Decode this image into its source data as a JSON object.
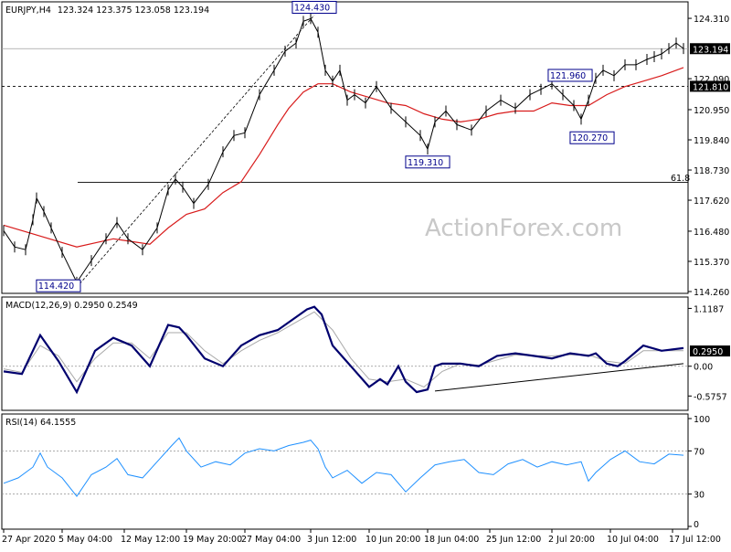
{
  "chart_data": [
    {
      "type": "line",
      "panel": "price",
      "title": "EURJPY,H4",
      "ohlc_label": "123.324 123.375 123.058 123.194",
      "y_ticks": [
        "124.310",
        "123.194",
        "122.090",
        "121.810",
        "120.950",
        "119.840",
        "118.730",
        "117.620",
        "116.480",
        "115.370",
        "114.260"
      ],
      "y_tick_values": [
        124.31,
        123.194,
        122.09,
        121.81,
        120.95,
        119.84,
        118.73,
        117.62,
        116.48,
        115.37,
        114.26
      ],
      "ylim": [
        114.26,
        124.85
      ],
      "current_price_label": "123.194",
      "hline_label": "121.810",
      "fib_label": "61.8",
      "fib_level": 118.28,
      "hline_level": 121.81,
      "current_level": 123.194,
      "annotations": [
        {
          "label": "124.430",
          "x": 85,
          "y": 124.43
        },
        {
          "label": "114.420",
          "x": 20,
          "y": 114.42
        },
        {
          "label": "119.310",
          "x": 116,
          "y": 119.31
        },
        {
          "label": "121.960",
          "x": 155,
          "y": 121.96
        },
        {
          "label": "120.270",
          "x": 161,
          "y": 120.27
        }
      ],
      "trendline": {
        "x": [
          20,
          85
        ],
        "y": [
          114.42,
          124.43
        ]
      },
      "series": [
        {
          "name": "price",
          "x": [
            0,
            3,
            6,
            8,
            9,
            11,
            13,
            16,
            20,
            24,
            28,
            31,
            34,
            38,
            42,
            45,
            47,
            49,
            52,
            56,
            60,
            63,
            66,
            70,
            74,
            77,
            80,
            82,
            84,
            86,
            88,
            90,
            92,
            94,
            96,
            99,
            102,
            106,
            110,
            114,
            116,
            118,
            121,
            124,
            128,
            132,
            136,
            140,
            144,
            147,
            150,
            153,
            156,
            158,
            160,
            162,
            164,
            167,
            170,
            173,
            176,
            178,
            180,
            182,
            184,
            186
          ],
          "y": [
            116.5,
            115.9,
            115.8,
            116.9,
            117.7,
            117.2,
            116.6,
            115.7,
            114.6,
            115.4,
            116.2,
            116.8,
            116.2,
            115.8,
            116.6,
            118.0,
            118.4,
            118.1,
            117.5,
            118.2,
            119.4,
            120.0,
            120.1,
            121.5,
            122.4,
            123.1,
            123.4,
            124.2,
            124.3,
            123.8,
            122.4,
            122.0,
            122.4,
            121.3,
            121.5,
            121.2,
            121.8,
            121.0,
            120.5,
            120.0,
            119.5,
            120.5,
            120.9,
            120.4,
            120.2,
            120.9,
            121.3,
            121.0,
            121.5,
            121.7,
            121.9,
            121.5,
            121.1,
            120.6,
            121.3,
            122.1,
            122.4,
            122.2,
            122.6,
            122.6,
            122.8,
            122.9,
            123.0,
            123.2,
            123.4,
            123.2
          ]
        },
        {
          "name": "moving-average",
          "x": [
            0,
            10,
            20,
            30,
            40,
            45,
            50,
            55,
            60,
            65,
            70,
            75,
            78,
            82,
            86,
            90,
            95,
            100,
            105,
            110,
            115,
            120,
            125,
            130,
            135,
            140,
            145,
            150,
            155,
            160,
            165,
            170,
            175,
            180,
            186
          ],
          "y": [
            116.7,
            116.3,
            115.9,
            116.2,
            116.0,
            116.6,
            117.1,
            117.3,
            117.9,
            118.3,
            119.3,
            120.4,
            121.0,
            121.6,
            121.9,
            121.9,
            121.6,
            121.4,
            121.2,
            121.1,
            120.8,
            120.6,
            120.5,
            120.6,
            120.8,
            120.9,
            120.9,
            121.2,
            121.1,
            121.1,
            121.5,
            121.8,
            122.0,
            122.2,
            122.5
          ]
        }
      ]
    },
    {
      "type": "line",
      "panel": "macd",
      "title": "MACD(12,26,9) 0.2950 0.2549",
      "y_ticks": [
        "1.1187",
        "0.2950",
        "0.00",
        "-0.5757"
      ],
      "y_tick_values": [
        1.1187,
        0.295,
        0.0,
        -0.5757
      ],
      "ylim": [
        -0.8,
        1.25
      ],
      "trendline": {
        "x": [
          118,
          186
        ],
        "y": [
          -0.48,
          0.05
        ]
      },
      "series": [
        {
          "name": "macd",
          "x": [
            0,
            5,
            10,
            15,
            20,
            25,
            30,
            35,
            40,
            45,
            48,
            50,
            55,
            60,
            65,
            70,
            75,
            80,
            83,
            85,
            87,
            90,
            95,
            100,
            103,
            105,
            108,
            110,
            113,
            116,
            118,
            120,
            125,
            130,
            135,
            140,
            145,
            150,
            155,
            160,
            162,
            165,
            168,
            170,
            175,
            180,
            186
          ],
          "y": [
            -0.1,
            -0.15,
            0.6,
            0.1,
            -0.5,
            0.3,
            0.55,
            0.4,
            0.0,
            0.8,
            0.75,
            0.6,
            0.15,
            0.0,
            0.4,
            0.6,
            0.7,
            0.95,
            1.1,
            1.15,
            1.0,
            0.4,
            0.0,
            -0.4,
            -0.25,
            -0.35,
            0.0,
            -0.3,
            -0.5,
            -0.45,
            0.0,
            0.05,
            0.05,
            0.0,
            0.2,
            0.25,
            0.2,
            0.15,
            0.25,
            0.2,
            0.25,
            0.05,
            0.0,
            0.1,
            0.4,
            0.3,
            0.35
          ]
        },
        {
          "name": "signal",
          "x": [
            0,
            5,
            10,
            15,
            20,
            25,
            30,
            35,
            40,
            45,
            50,
            55,
            60,
            65,
            70,
            75,
            80,
            85,
            90,
            95,
            100,
            105,
            110,
            115,
            120,
            125,
            130,
            135,
            140,
            145,
            150,
            155,
            160,
            165,
            170,
            175,
            180,
            186
          ],
          "y": [
            -0.05,
            -0.12,
            0.4,
            0.2,
            -0.3,
            0.15,
            0.45,
            0.45,
            0.15,
            0.65,
            0.65,
            0.3,
            0.05,
            0.3,
            0.5,
            0.65,
            0.85,
            1.05,
            0.7,
            0.15,
            -0.25,
            -0.3,
            -0.25,
            -0.4,
            -0.1,
            0.05,
            0.02,
            0.12,
            0.22,
            0.2,
            0.2,
            0.22,
            0.22,
            0.1,
            0.05,
            0.3,
            0.3,
            0.3
          ]
        }
      ]
    },
    {
      "type": "line",
      "panel": "rsi",
      "title": "RSI(14) 64.1555",
      "y_ticks": [
        "100",
        "70",
        "30",
        "0"
      ],
      "y_tick_values": [
        100,
        70,
        30,
        0
      ],
      "ylim": [
        0,
        100
      ],
      "levels": [
        70,
        30
      ],
      "series": [
        {
          "name": "rsi",
          "x": [
            0,
            4,
            8,
            10,
            12,
            16,
            20,
            24,
            28,
            31,
            34,
            38,
            42,
            46,
            48,
            50,
            54,
            58,
            62,
            66,
            70,
            74,
            78,
            82,
            84,
            86,
            88,
            90,
            94,
            98,
            102,
            106,
            110,
            114,
            118,
            122,
            126,
            130,
            134,
            138,
            142,
            146,
            150,
            154,
            158,
            160,
            162,
            166,
            170,
            174,
            178,
            182,
            186
          ],
          "y": [
            40,
            45,
            55,
            68,
            55,
            45,
            28,
            48,
            55,
            63,
            48,
            45,
            60,
            75,
            82,
            70,
            55,
            60,
            57,
            68,
            72,
            70,
            75,
            78,
            80,
            72,
            55,
            45,
            52,
            40,
            50,
            48,
            32,
            45,
            57,
            60,
            62,
            50,
            48,
            58,
            62,
            55,
            60,
            57,
            60,
            42,
            50,
            62,
            70,
            60,
            58,
            67,
            66
          ]
        }
      ]
    }
  ],
  "x_axis": {
    "labels": [
      "27 Apr 2020",
      "5 May 04:00",
      "12 May 12:00",
      "19 May 20:00",
      "27 May 04:00",
      "3 Jun 12:00",
      "10 Jun 20:00",
      "18 Jun 04:00",
      "25 Jun 12:00",
      "2 Jul 20:00",
      "10 Jul 04:00",
      "17 Jul 12:00"
    ],
    "positions": [
      0,
      16,
      33,
      50,
      66,
      84,
      100,
      116,
      133,
      150,
      166,
      183
    ],
    "x_range": [
      0,
      186
    ]
  },
  "watermark": "ActionForex.com",
  "colors": {
    "price": "#000000",
    "moving_average": "#d81b1b",
    "macd": "#00006e",
    "signal": "#a9a9a9",
    "rsi": "#1e90ff",
    "annotation_border": "#00008b",
    "annotation_text": "#00008b",
    "current_price_bg": "#000000",
    "current_price_text": "#ffffff"
  }
}
